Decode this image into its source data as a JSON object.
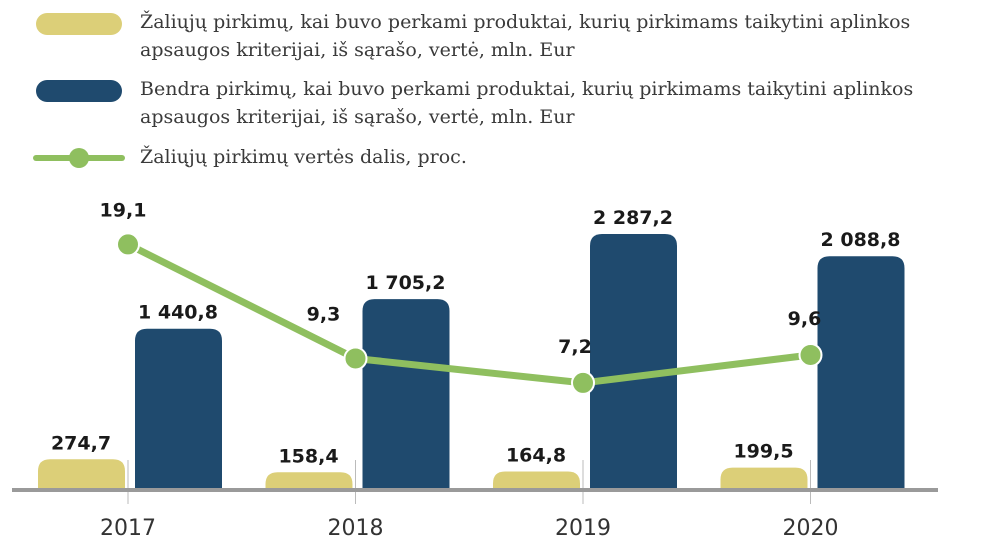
{
  "chart_data": {
    "type": "bar",
    "categories": [
      "2017",
      "2018",
      "2019",
      "2020"
    ],
    "series": [
      {
        "name": "Žaliųjų pirkimų, kai buvo perkami produktai, kurių pirkimams taikytini aplinkos apsaugos kriterijai, iš sąrašo, vertė, mln. Eur",
        "type": "bar",
        "color": "#dccf78",
        "values": [
          274.7,
          158.4,
          164.8,
          199.5
        ],
        "value_labels": [
          "274,7",
          "158,4",
          "164,8",
          "199,5"
        ]
      },
      {
        "name": "Bendra pirkimų, kai buvo perkami produktai, kurių pirkimams taikytini aplinkos apsaugos kriterijai, iš sąrašo, vertė, mln. Eur",
        "type": "bar",
        "color": "#1f4a6e",
        "values": [
          1440.8,
          1705.2,
          2287.2,
          2088.8
        ],
        "value_labels": [
          "1 440,8",
          "1 705,2",
          "2 287,2",
          "2 088,8"
        ]
      },
      {
        "name": "Žaliųjų pirkimų vertės dalis, proc.",
        "type": "line",
        "axis": "y2",
        "color": "#8fbf5f",
        "values": [
          19.1,
          9.3,
          7.2,
          9.6
        ],
        "value_labels": [
          "19,1",
          "9,3",
          "7,2",
          "9,6"
        ]
      }
    ],
    "ylim": [
      0,
      2600
    ],
    "y2lim": [
      -2,
      23
    ]
  }
}
